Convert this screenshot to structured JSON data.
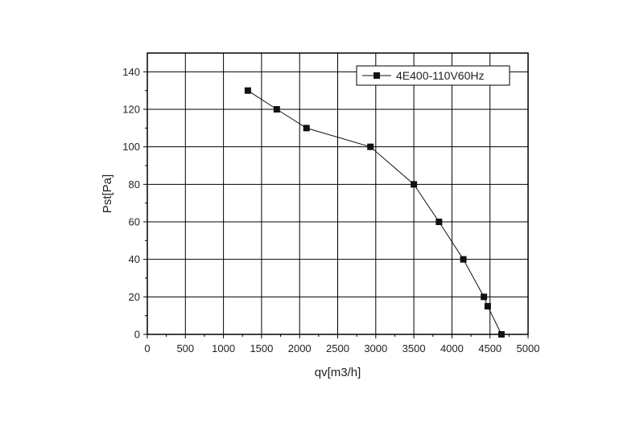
{
  "chart_data": {
    "type": "line",
    "xlabel": "qv[m3/h]",
    "ylabel": "Pst[Pa]",
    "xlim": [
      0,
      5000
    ],
    "ylim": [
      0,
      150
    ],
    "x_ticks": [
      0,
      500,
      1000,
      1500,
      2000,
      2500,
      3000,
      3500,
      4000,
      4500,
      5000
    ],
    "y_ticks": [
      0,
      20,
      40,
      60,
      80,
      100,
      120,
      140
    ],
    "x_tick_labels": [
      "0",
      "500",
      "1000",
      "1500",
      "2000",
      "2500",
      "3000",
      "3500",
      "4000",
      "4500",
      "5000"
    ],
    "y_tick_labels": [
      "0",
      "20",
      "40",
      "60",
      "80",
      "100",
      "120",
      "140"
    ],
    "grid": true,
    "legend_position": "top-right",
    "series": [
      {
        "name": "4E400-110V60Hz",
        "color": "#111111",
        "marker": "square",
        "x": [
          1320,
          1700,
          2090,
          2930,
          3500,
          3830,
          4150,
          4420,
          4470,
          4650
        ],
        "y": [
          130,
          120,
          110,
          100,
          80,
          60,
          40,
          20,
          15,
          0
        ]
      }
    ]
  }
}
